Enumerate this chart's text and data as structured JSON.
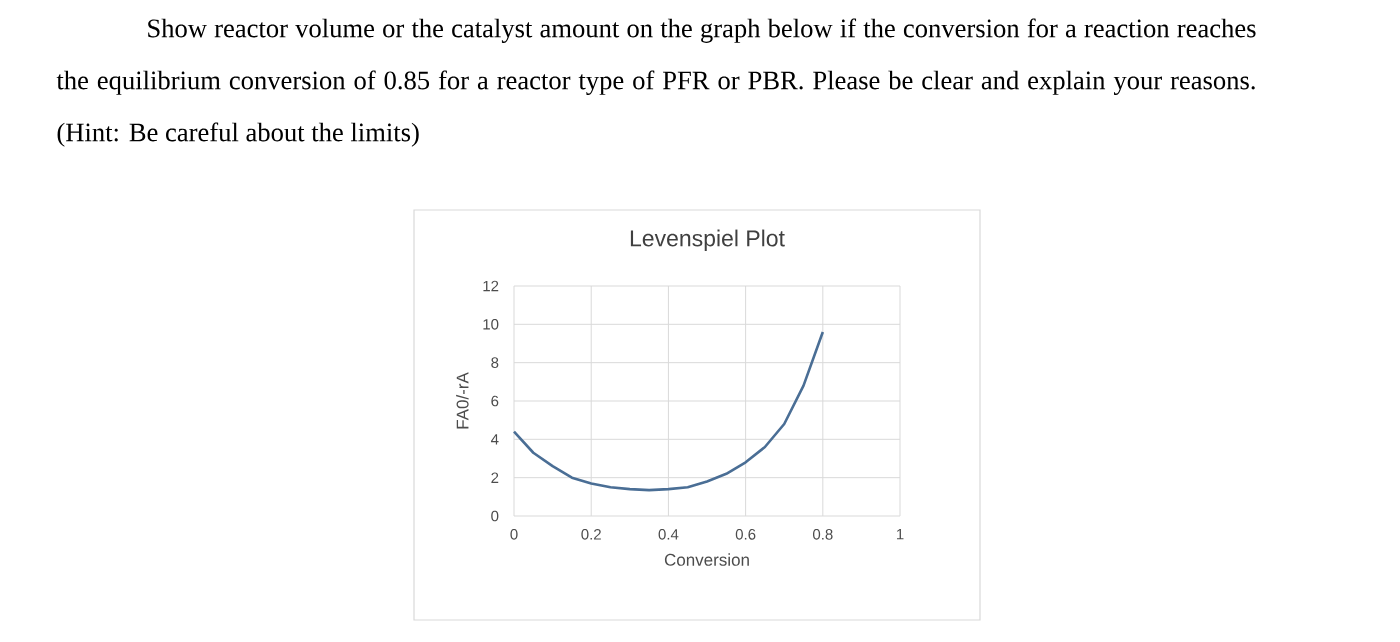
{
  "chart_data": {
    "type": "line",
    "title": "Levenspiel Plot",
    "xlabel": "Conversion",
    "ylabel": "FA0/-rA",
    "annotations": [
      "Show reactor volume or the catalyst amount on the graph below if the conversion for a reaction reaches the equilibrium conversion of 0.85 for a reactor type of PFR or PBR. Please be clear and explain your reasons. (Hint: Be careful about the limits)"
    ],
    "x": [
      0,
      0.05,
      0.1,
      0.15,
      0.2,
      0.25,
      0.3,
      0.35,
      0.4,
      0.45,
      0.5,
      0.55,
      0.6,
      0.65,
      0.7,
      0.75,
      0.8
    ],
    "series": [
      {
        "color": "#4a6e95",
        "values": [
          4.4,
          3.3,
          2.6,
          2.0,
          1.7,
          1.5,
          1.4,
          1.35,
          1.4,
          1.5,
          1.8,
          2.2,
          2.8,
          3.6,
          4.8,
          6.8,
          9.6
        ]
      }
    ],
    "xlim": [
      0,
      1
    ],
    "ylim": [
      0,
      12
    ],
    "xticks": [
      0,
      0.2,
      0.4,
      0.6,
      0.8,
      1
    ],
    "yticks": [
      0,
      2,
      4,
      6,
      8,
      10,
      12
    ],
    "grid": true
  }
}
